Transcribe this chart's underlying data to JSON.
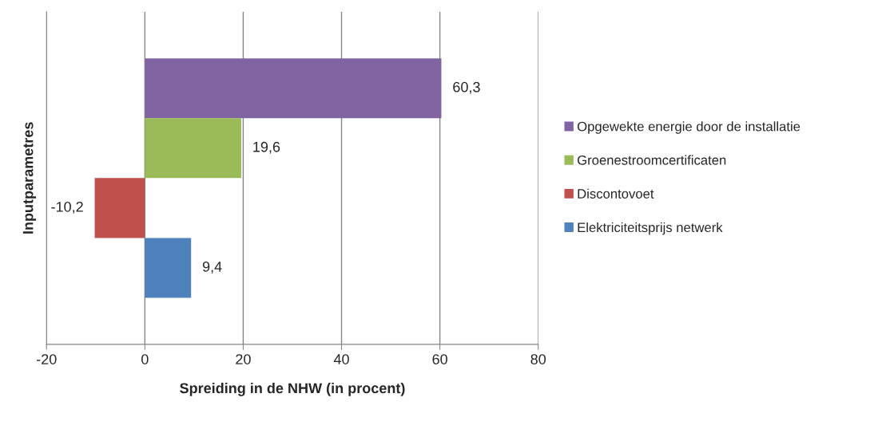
{
  "chart_data": {
    "type": "bar",
    "orientation": "horizontal",
    "categories": [
      null
    ],
    "series": [
      {
        "name": "Opgewekte energie door de installatie",
        "color": "#8064a2",
        "values": [
          60.3
        ],
        "value_labels": [
          "60,3"
        ]
      },
      {
        "name": "Groenestroomcertificaten",
        "color": "#9bbb59",
        "values": [
          19.6
        ],
        "value_labels": [
          "19,6"
        ]
      },
      {
        "name": "Discontovoet",
        "color": "#c0504d",
        "values": [
          -10.2
        ],
        "value_labels": [
          "-10,2"
        ]
      },
      {
        "name": "Elektriciteitsprijs netwerk",
        "color": "#4f81bd",
        "values": [
          9.4
        ],
        "value_labels": [
          "9,4"
        ]
      }
    ],
    "xlim": [
      -20,
      80
    ],
    "xticks": [
      -20,
      0,
      20,
      40,
      60,
      80
    ],
    "xlabel": "Spreiding in de NHW (in procent)",
    "ylabel": "Inputparametres",
    "grid": "x",
    "legend": "right"
  }
}
